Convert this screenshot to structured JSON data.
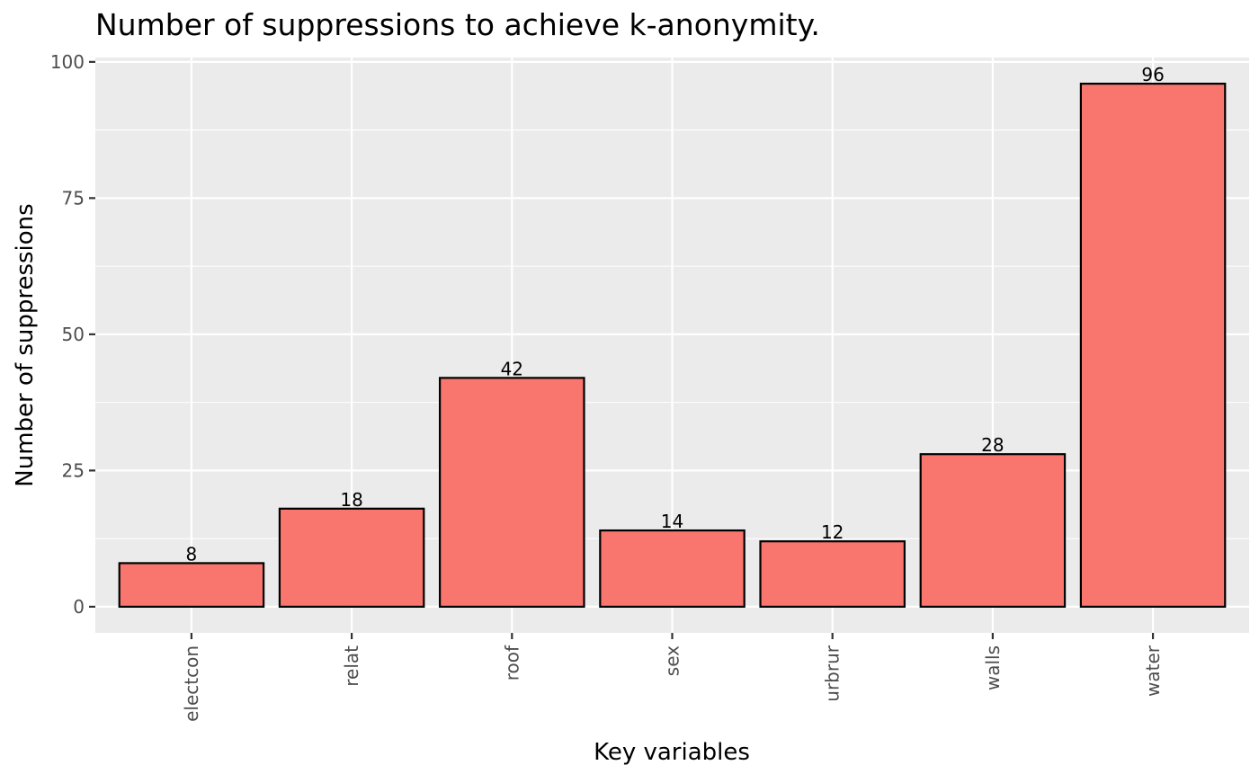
{
  "chart_data": {
    "type": "bar",
    "title": "Number of suppressions to achieve k-anonymity.",
    "xlabel": "Key variables",
    "ylabel": "Number of suppressions",
    "categories": [
      "electcon",
      "relat",
      "roof",
      "sex",
      "urbrur",
      "walls",
      "water"
    ],
    "values": [
      8,
      18,
      42,
      14,
      12,
      28,
      96
    ],
    "data_labels": [
      "8",
      "18",
      "42",
      "14",
      "12",
      "28",
      "96"
    ],
    "y_ticks": [
      0,
      25,
      50,
      75,
      100
    ],
    "y_tick_labels": [
      "0",
      "25",
      "50",
      "75",
      "100"
    ],
    "ylim": [
      -4.8,
      100.8
    ],
    "grid": true,
    "legend": "none",
    "x_tick_label_rotation": "vertical",
    "colors": {
      "bar_fill": "#F8766D",
      "bar_stroke": "#000000",
      "panel_background": "#EBEBEB",
      "grid": "#FFFFFF",
      "axis_text": "#4D4D4D"
    }
  }
}
